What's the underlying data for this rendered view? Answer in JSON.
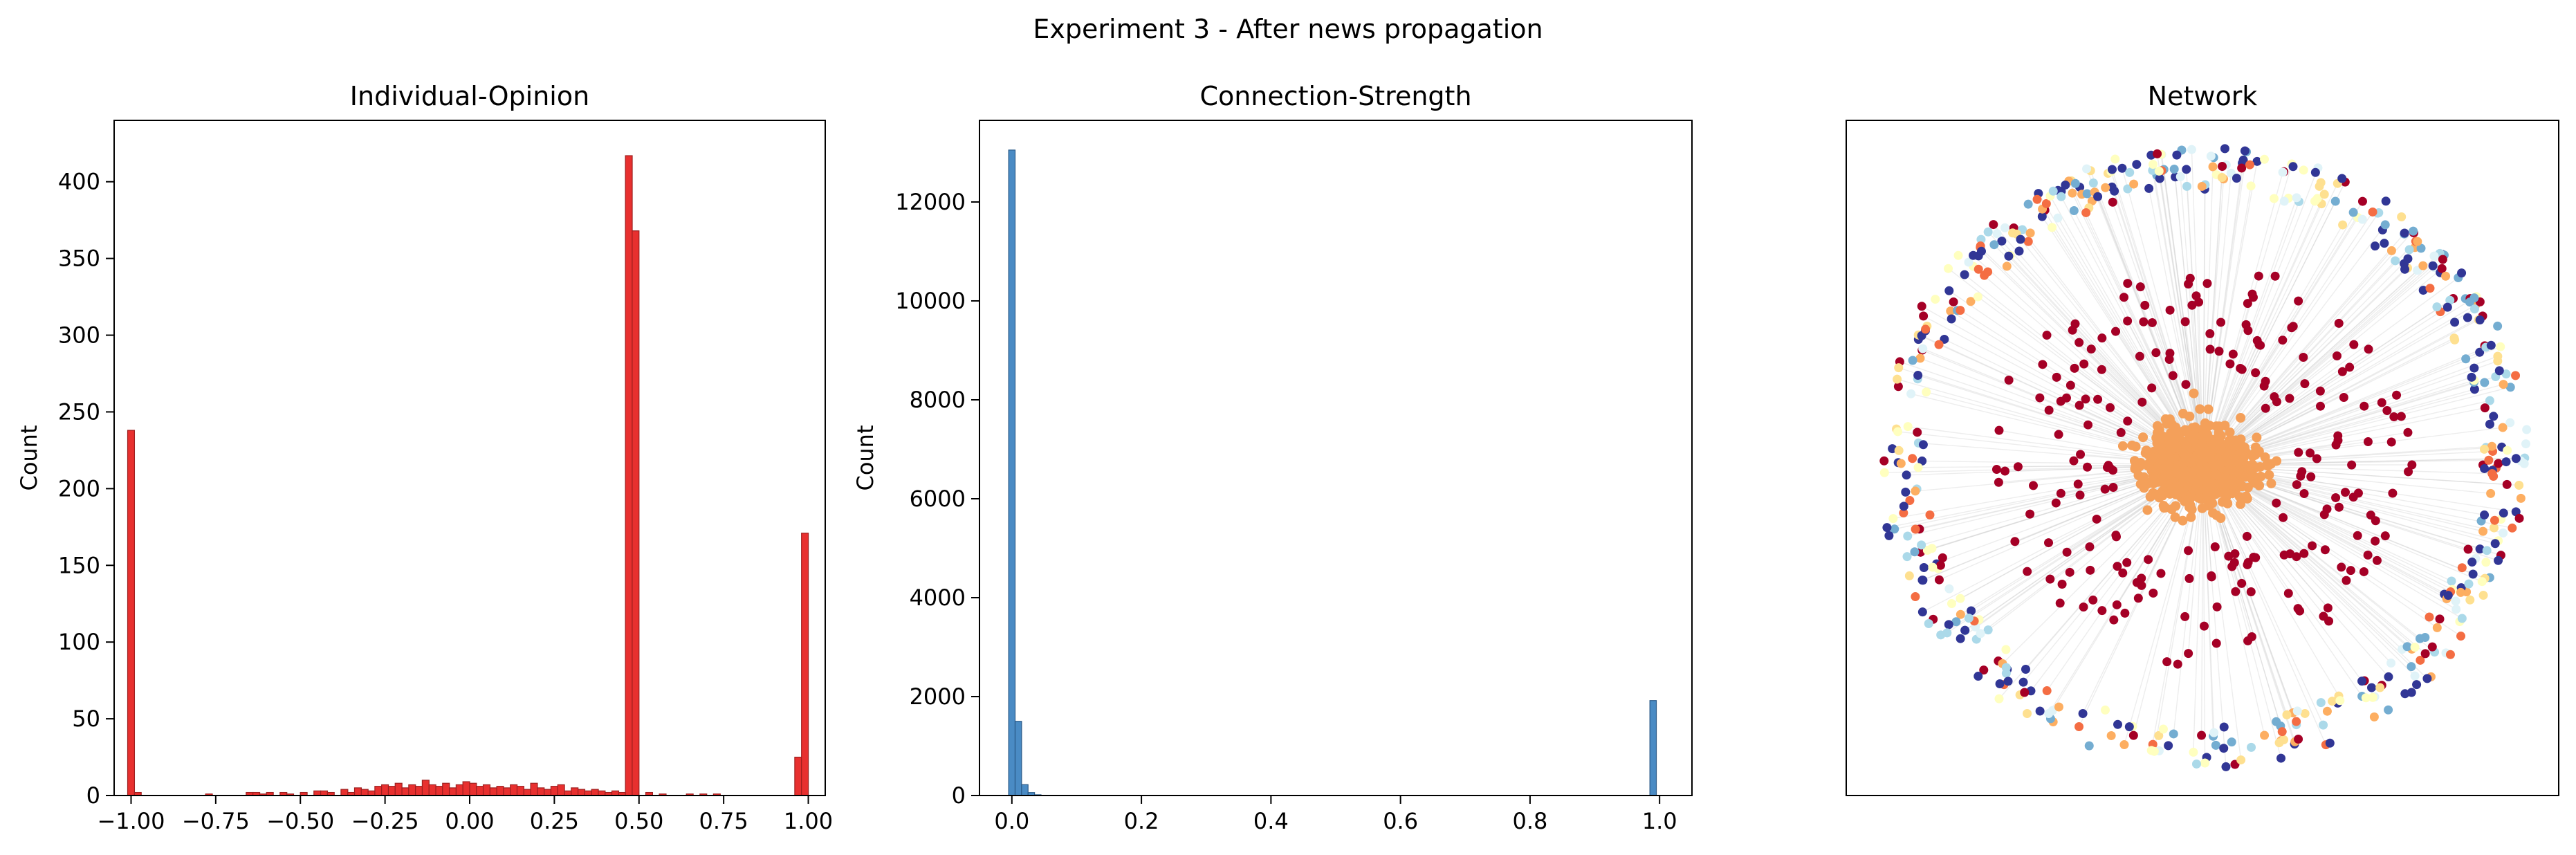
{
  "figure": {
    "suptitle": "Experiment 3 - After news propagation"
  },
  "colors": {
    "opinion_bar": "#e8302f",
    "opinion_edge": "#9e1f1f",
    "strength_bar": "#4a8bc4",
    "strength_edge": "#2a5a88"
  },
  "chart_data": [
    {
      "type": "bar",
      "title": "Individual-Opinion",
      "xlabel": "",
      "ylabel": "Count",
      "xlim": [
        -1.05,
        1.05
      ],
      "ylim": [
        0,
        440
      ],
      "xticks": [
        -1.0,
        -0.75,
        -0.5,
        -0.25,
        0.0,
        0.25,
        0.5,
        0.75,
        1.0
      ],
      "xtick_labels": [
        "−1.00",
        "−0.75",
        "−0.50",
        "−0.25",
        "0.00",
        "0.25",
        "0.50",
        "0.75",
        "1.00"
      ],
      "yticks": [
        0,
        50,
        100,
        150,
        200,
        250,
        300,
        350,
        400
      ],
      "ytick_labels": [
        "0",
        "50",
        "100",
        "150",
        "200",
        "250",
        "300",
        "350",
        "400"
      ],
      "bin_width": 0.0202,
      "bins": [
        {
          "x": -1.0,
          "count": 238
        },
        {
          "x": -0.98,
          "count": 2
        },
        {
          "x": -0.77,
          "count": 1
        },
        {
          "x": -0.65,
          "count": 2
        },
        {
          "x": -0.63,
          "count": 2
        },
        {
          "x": -0.61,
          "count": 1
        },
        {
          "x": -0.59,
          "count": 2
        },
        {
          "x": -0.55,
          "count": 2
        },
        {
          "x": -0.53,
          "count": 1
        },
        {
          "x": -0.49,
          "count": 2
        },
        {
          "x": -0.45,
          "count": 3
        },
        {
          "x": -0.43,
          "count": 3
        },
        {
          "x": -0.41,
          "count": 2
        },
        {
          "x": -0.37,
          "count": 4
        },
        {
          "x": -0.35,
          "count": 2
        },
        {
          "x": -0.33,
          "count": 5
        },
        {
          "x": -0.31,
          "count": 4
        },
        {
          "x": -0.29,
          "count": 3
        },
        {
          "x": -0.27,
          "count": 6
        },
        {
          "x": -0.25,
          "count": 7
        },
        {
          "x": -0.23,
          "count": 6
        },
        {
          "x": -0.21,
          "count": 8
        },
        {
          "x": -0.19,
          "count": 5
        },
        {
          "x": -0.17,
          "count": 7
        },
        {
          "x": -0.15,
          "count": 6
        },
        {
          "x": -0.13,
          "count": 10
        },
        {
          "x": -0.11,
          "count": 7
        },
        {
          "x": -0.09,
          "count": 6
        },
        {
          "x": -0.07,
          "count": 8
        },
        {
          "x": -0.05,
          "count": 5
        },
        {
          "x": -0.03,
          "count": 7
        },
        {
          "x": -0.01,
          "count": 9
        },
        {
          "x": 0.01,
          "count": 8
        },
        {
          "x": 0.03,
          "count": 6
        },
        {
          "x": 0.05,
          "count": 7
        },
        {
          "x": 0.07,
          "count": 5
        },
        {
          "x": 0.09,
          "count": 6
        },
        {
          "x": 0.11,
          "count": 5
        },
        {
          "x": 0.13,
          "count": 7
        },
        {
          "x": 0.15,
          "count": 6
        },
        {
          "x": 0.17,
          "count": 4
        },
        {
          "x": 0.19,
          "count": 8
        },
        {
          "x": 0.21,
          "count": 5
        },
        {
          "x": 0.23,
          "count": 4
        },
        {
          "x": 0.25,
          "count": 6
        },
        {
          "x": 0.27,
          "count": 7
        },
        {
          "x": 0.29,
          "count": 3
        },
        {
          "x": 0.31,
          "count": 5
        },
        {
          "x": 0.33,
          "count": 4
        },
        {
          "x": 0.35,
          "count": 3
        },
        {
          "x": 0.37,
          "count": 4
        },
        {
          "x": 0.39,
          "count": 3
        },
        {
          "x": 0.41,
          "count": 2
        },
        {
          "x": 0.43,
          "count": 3
        },
        {
          "x": 0.45,
          "count": 2
        },
        {
          "x": 0.47,
          "count": 417
        },
        {
          "x": 0.49,
          "count": 368
        },
        {
          "x": 0.53,
          "count": 2
        },
        {
          "x": 0.57,
          "count": 1
        },
        {
          "x": 0.65,
          "count": 1
        },
        {
          "x": 0.69,
          "count": 1
        },
        {
          "x": 0.73,
          "count": 1
        },
        {
          "x": 0.97,
          "count": 25
        },
        {
          "x": 0.99,
          "count": 171
        }
      ]
    },
    {
      "type": "bar",
      "title": "Connection-Strength",
      "xlabel": "",
      "ylabel": "Count",
      "xlim": [
        -0.05,
        1.05
      ],
      "ylim": [
        0,
        13650
      ],
      "xticks": [
        0.0,
        0.2,
        0.4,
        0.6,
        0.8,
        1.0
      ],
      "xtick_labels": [
        "0.0",
        "0.2",
        "0.4",
        "0.6",
        "0.8",
        "1.0"
      ],
      "yticks": [
        0,
        2000,
        4000,
        6000,
        8000,
        10000,
        12000
      ],
      "ytick_labels": [
        "0",
        "2000",
        "4000",
        "6000",
        "8000",
        "10000",
        "12000"
      ],
      "bin_width": 0.01,
      "bins": [
        {
          "x": 0.0,
          "count": 13050
        },
        {
          "x": 0.01,
          "count": 1500
        },
        {
          "x": 0.02,
          "count": 220
        },
        {
          "x": 0.03,
          "count": 60
        },
        {
          "x": 0.04,
          "count": 15
        },
        {
          "x": 0.99,
          "count": 1920
        }
      ]
    },
    {
      "type": "scatter",
      "title": "Network",
      "description_of_marks": "graph nodes",
      "node_groups": [
        {
          "role": "ring",
          "count": 520,
          "palette": [
            "#313695",
            "#313695",
            "#313695",
            "#a50026",
            "#f46d43",
            "#fdae61",
            "#fee090",
            "#ffffbf",
            "#e0f3f8",
            "#abd9e9",
            "#74add1"
          ]
        },
        {
          "role": "mid",
          "count": 220,
          "palette": [
            "#a50026"
          ]
        },
        {
          "role": "core",
          "count": 900,
          "palette": [
            "#f4a05a"
          ]
        }
      ],
      "edge_color": "#cccccc"
    }
  ]
}
